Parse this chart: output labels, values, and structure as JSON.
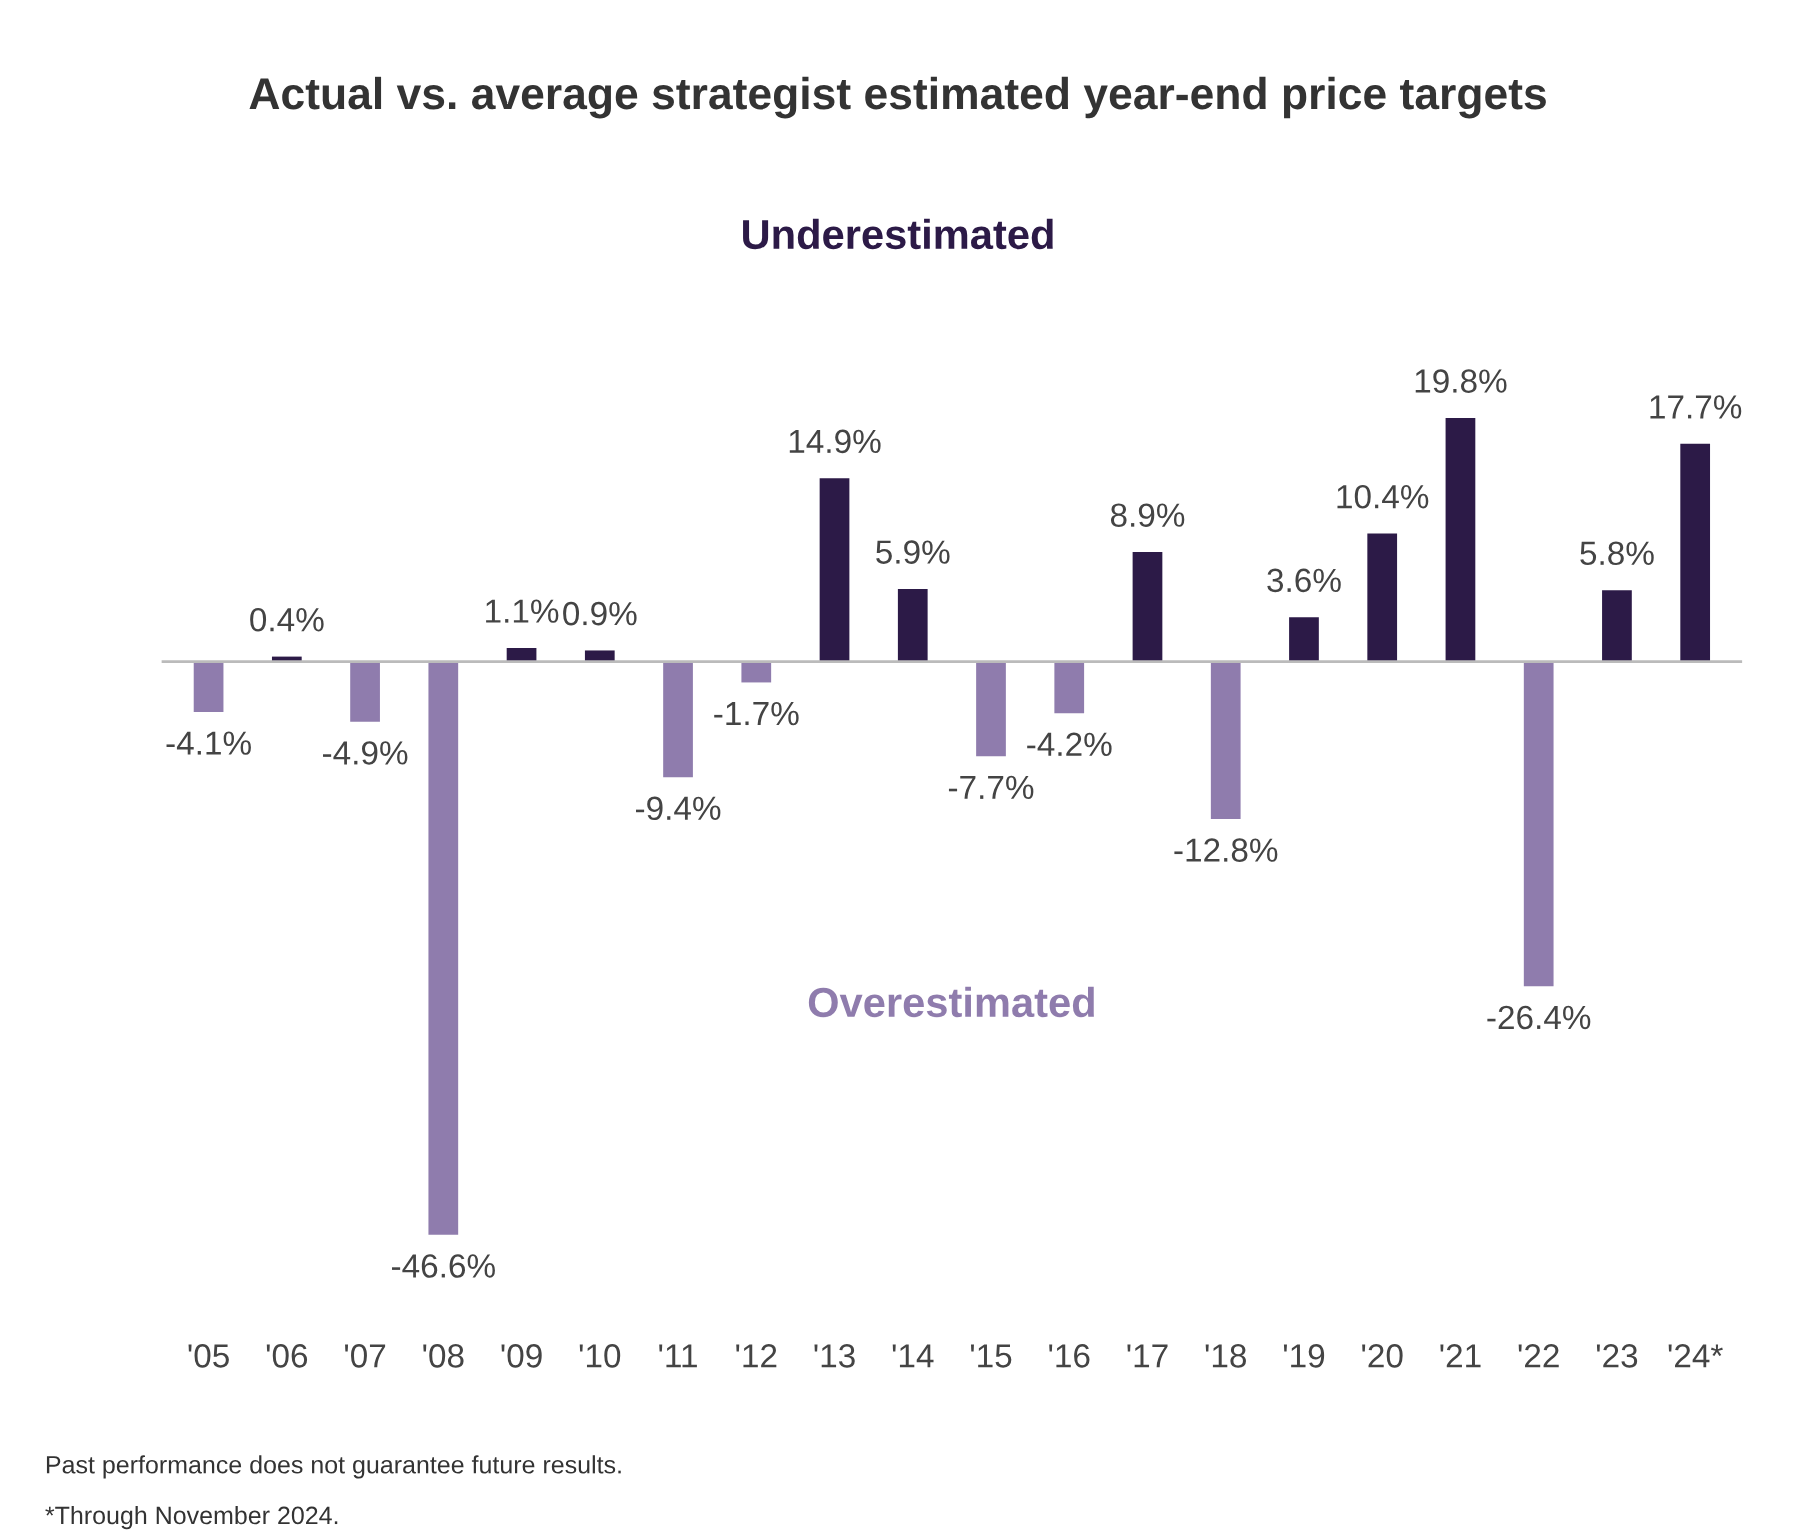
{
  "chart_data": {
    "type": "bar",
    "title": "Actual vs. average strategist estimated year-end price targets",
    "categories": [
      "'05",
      "'06",
      "'07",
      "'08",
      "'09",
      "'10",
      "'11",
      "'12",
      "'13",
      "'14",
      "'15",
      "'16",
      "'17",
      "'18",
      "'19",
      "'20",
      "'21",
      "'22",
      "'23",
      "'24*"
    ],
    "values": [
      -4.1,
      0.4,
      -4.9,
      -46.6,
      1.1,
      0.9,
      -9.4,
      -1.7,
      14.9,
      5.9,
      -7.7,
      -4.2,
      8.9,
      -12.8,
      3.6,
      10.4,
      19.8,
      -26.4,
      5.8,
      17.7
    ],
    "value_labels": [
      "-4.1%",
      "0.4%",
      "-4.9%",
      "-46.6%",
      "1.1%",
      "0.9%",
      "-9.4%",
      "-1.7%",
      "14.9%",
      "5.9%",
      "-7.7%",
      "-4.2%",
      "8.9%",
      "-12.8%",
      "3.6%",
      "10.4%",
      "19.8%",
      "-26.4%",
      "5.8%",
      "17.7%"
    ],
    "colors": [
      "#8f7cad",
      "#2c1a47",
      "#8f7cad",
      "#8f7cad",
      "#2c1a47",
      "#2c1a47",
      "#8f7cad",
      "#8f7cad",
      "#2c1a47",
      "#2c1a47",
      "#8f7cad",
      "#8f7cad",
      "#2c1a47",
      "#8f7cad",
      "#2c1a47",
      "#2c1a47",
      "#2c1a47",
      "#8f7cad",
      "#2c1a47",
      "#2c1a47"
    ],
    "annotations": [
      "Underestimated",
      "Overestimated",
      "Past performance does not guarantee future results.",
      "*Through November 2024."
    ]
  }
}
